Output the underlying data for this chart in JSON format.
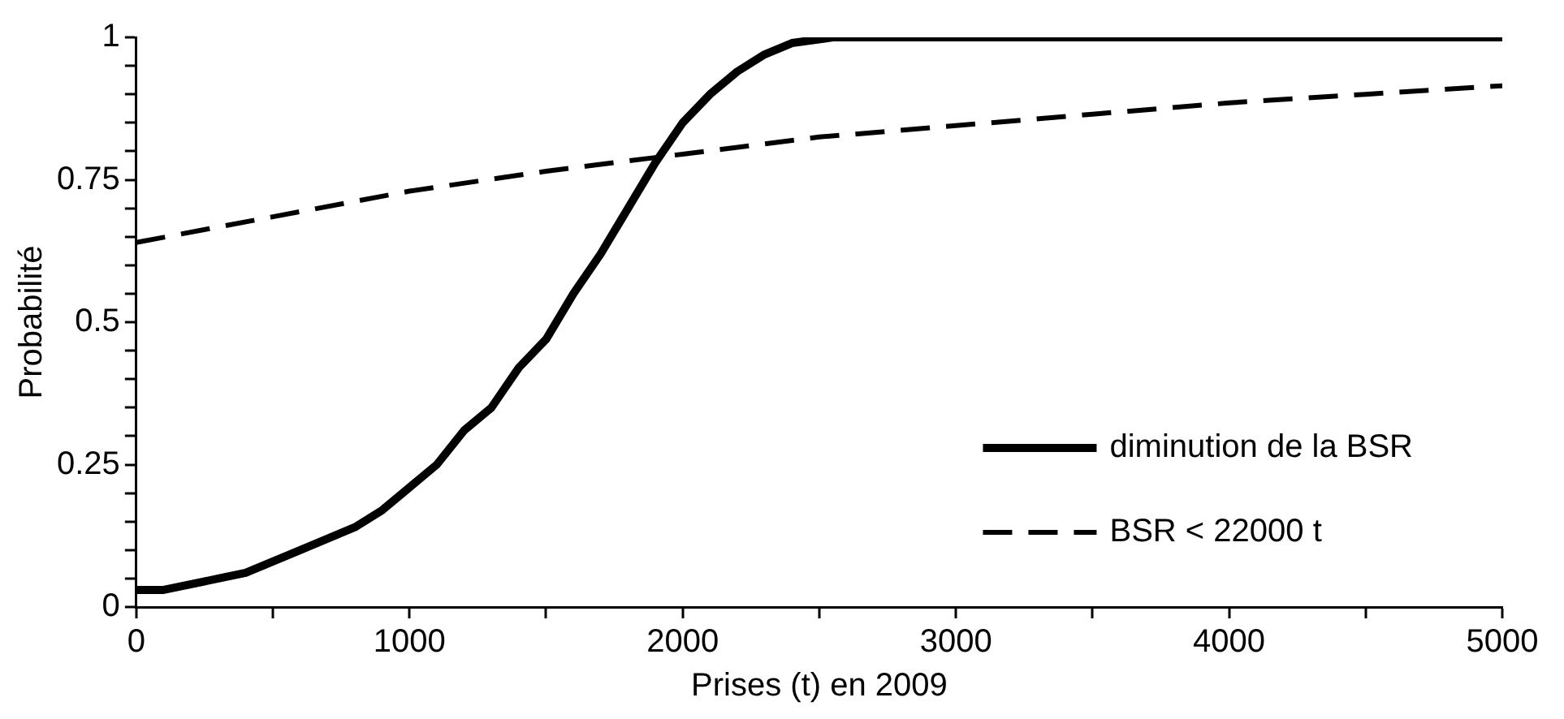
{
  "chart_data": {
    "type": "line",
    "xlabel": "Prises (t) en 2009",
    "ylabel": "Probabilité",
    "xlim": [
      0,
      5000
    ],
    "ylim": [
      0,
      1
    ],
    "xticks": [
      0,
      {
        "value": 500,
        "label": null
      },
      1000,
      {
        "value": 1500,
        "label": null
      },
      2000,
      {
        "value": 2500,
        "label": null
      },
      3000,
      {
        "value": 3500,
        "label": null
      },
      4000,
      {
        "value": 4500,
        "label": null
      },
      5000
    ],
    "yticks": [
      0,
      {
        "value": 0.05,
        "label": null
      },
      {
        "value": 0.1,
        "label": null
      },
      {
        "value": 0.15,
        "label": null
      },
      {
        "value": 0.2,
        "label": null
      },
      0.25,
      {
        "value": 0.3,
        "label": null
      },
      {
        "value": 0.35,
        "label": null
      },
      {
        "value": 0.4,
        "label": null
      },
      {
        "value": 0.45,
        "label": null
      },
      0.5,
      {
        "value": 0.55,
        "label": null
      },
      {
        "value": 0.6,
        "label": null
      },
      {
        "value": 0.65,
        "label": null
      },
      {
        "value": 0.7,
        "label": null
      },
      0.75,
      {
        "value": 0.8,
        "label": null
      },
      {
        "value": 0.85,
        "label": null
      },
      {
        "value": 0.9,
        "label": null
      },
      {
        "value": 0.95,
        "label": null
      },
      1
    ],
    "grid": false,
    "legend": "bottom right",
    "marker": "none",
    "series": [
      {
        "name": "diminution de la BSR",
        "color": "#000000",
        "line_style": "solid",
        "x": [
          0,
          100,
          300,
          400,
          500,
          600,
          800,
          900,
          1000,
          1100,
          1200,
          1300,
          1400,
          1500,
          1600,
          1700,
          1800,
          1900,
          2000,
          2100,
          2200,
          2300,
          2400,
          2550,
          5000
        ],
        "values": [
          0.03,
          0.03,
          0.05,
          0.06,
          0.08,
          0.1,
          0.14,
          0.17,
          0.21,
          0.25,
          0.31,
          0.35,
          0.42,
          0.47,
          0.55,
          0.62,
          0.7,
          0.78,
          0.85,
          0.9,
          0.94,
          0.97,
          0.99,
          1,
          1
        ]
      },
      {
        "name": "BSR < 22000 t",
        "color": "#000000",
        "line_style": "dashed",
        "x": [
          0,
          500,
          1000,
          1500,
          2000,
          2500,
          3000,
          3500,
          4000,
          4500,
          5000
        ],
        "values": [
          0.64,
          0.685,
          0.73,
          0.765,
          0.795,
          0.825,
          0.845,
          0.865,
          0.885,
          0.9,
          0.915
        ]
      }
    ]
  }
}
